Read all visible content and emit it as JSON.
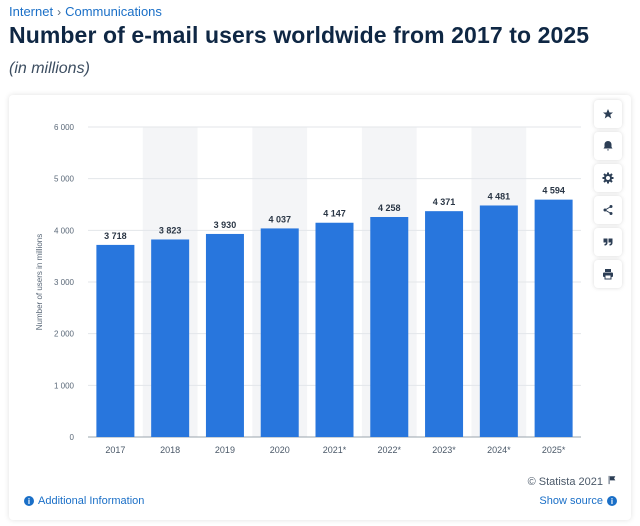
{
  "breadcrumb": {
    "items": [
      "Internet",
      "Communications"
    ],
    "separator": "›"
  },
  "page": {
    "title": "Number of e-mail users worldwide from 2017 to 2025",
    "subtitle": "(in millions)"
  },
  "tools": [
    "star-icon",
    "bell-icon",
    "gear-icon",
    "share-icon",
    "quote-icon",
    "print-icon"
  ],
  "footer": {
    "copyright": "© Statista 2021",
    "additional_info": "Additional Information",
    "show_source": "Show source"
  },
  "colors": {
    "bar": "#2876dd",
    "band": "#f4f5f7",
    "grid": "#e3e6ea",
    "link": "#1a6fc7"
  },
  "chart_data": {
    "type": "bar",
    "categories": [
      "2017",
      "2018",
      "2019",
      "2020",
      "2021*",
      "2022*",
      "2023*",
      "2024*",
      "2025*"
    ],
    "values": [
      3718,
      3823,
      3930,
      4037,
      4147,
      4258,
      4371,
      4481,
      4594
    ],
    "value_labels": [
      "3 718",
      "3 823",
      "3 930",
      "4 037",
      "4 147",
      "4 258",
      "4 371",
      "4 481",
      "4 594"
    ],
    "ylabel": "Number of users in millions",
    "ylim": [
      0,
      6000
    ],
    "yticks": [
      0,
      1000,
      2000,
      3000,
      4000,
      5000,
      6000
    ],
    "ytick_labels": [
      "0",
      "1 000",
      "2 000",
      "3 000",
      "4 000",
      "5 000",
      "6 000"
    ],
    "grid": true,
    "legend": false
  }
}
